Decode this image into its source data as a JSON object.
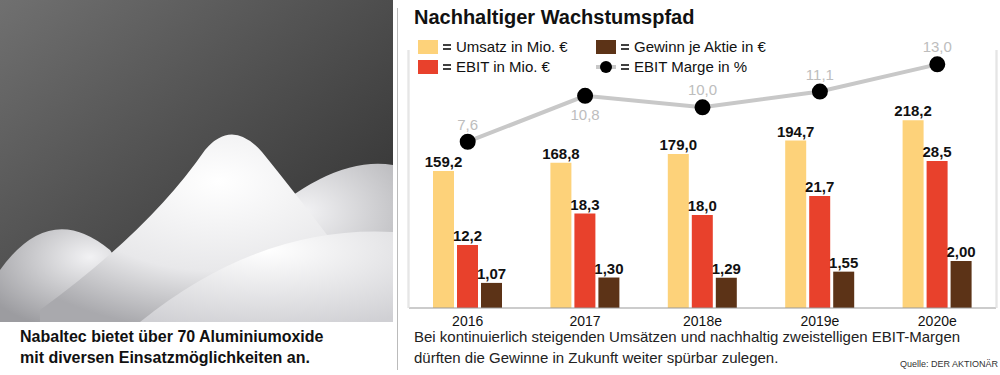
{
  "chart_data": {
    "type": "bar",
    "title": "Nachhaltiger Wachstumspfad",
    "categories": [
      "2016",
      "2017",
      "2018e",
      "2019e",
      "2020e"
    ],
    "series": [
      {
        "name": "Umsatz in Mio. €",
        "type": "bar",
        "color": "#FDD27A",
        "axis": "y",
        "values": [
          159.2,
          168.8,
          179.0,
          194.7,
          218.2
        ],
        "value_labels": [
          "159,2",
          "168,8",
          "179,0",
          "194,7",
          "218,2"
        ]
      },
      {
        "name": "EBIT in Mio. €",
        "type": "bar",
        "color": "#E8412C",
        "axis": "y2",
        "values": [
          12.2,
          18.3,
          18.0,
          21.7,
          28.5
        ],
        "value_labels": [
          "12,2",
          "18,3",
          "18,0",
          "21,7",
          "28,5"
        ]
      },
      {
        "name": "Gewinn je Aktie in €",
        "type": "bar",
        "color": "#5C3317",
        "axis": "y3",
        "values": [
          1.07,
          1.3,
          1.29,
          1.55,
          2.0
        ],
        "value_labels": [
          "1,07",
          "1,30",
          "1,29",
          "1,55",
          "2,00"
        ]
      },
      {
        "name": "EBIT Marge in %",
        "type": "line",
        "color": "#C8C8C8",
        "axis": "y4",
        "marker": "circle",
        "values": [
          7.6,
          10.8,
          10.0,
          11.1,
          13.0
        ],
        "value_labels": [
          "7,6",
          "10,8",
          "10,0",
          "11,1",
          "13,0"
        ]
      }
    ],
    "ylim": [
      0,
      300
    ],
    "y2lim": [
      0,
      50
    ],
    "y3lim": [
      0,
      11
    ],
    "y4lim": [
      -4,
      14
    ],
    "data_labels": true,
    "tick_labels": "x",
    "grid": false,
    "legend": "top left",
    "caption": [
      "Bei kontinuierlich steigenden Umsätzen und nachhaltig zweistelligen EBIT-Margen",
      "dürften die Gewinne in Zukunft weiter spürbar zulegen."
    ],
    "source": "Quelle: DER AKTIONÄR"
  },
  "photo_caption": [
    "Nabaltec bietet über 70 Aluminiumoxide",
    "mit diversen Einsatzmöglichkeiten an."
  ]
}
